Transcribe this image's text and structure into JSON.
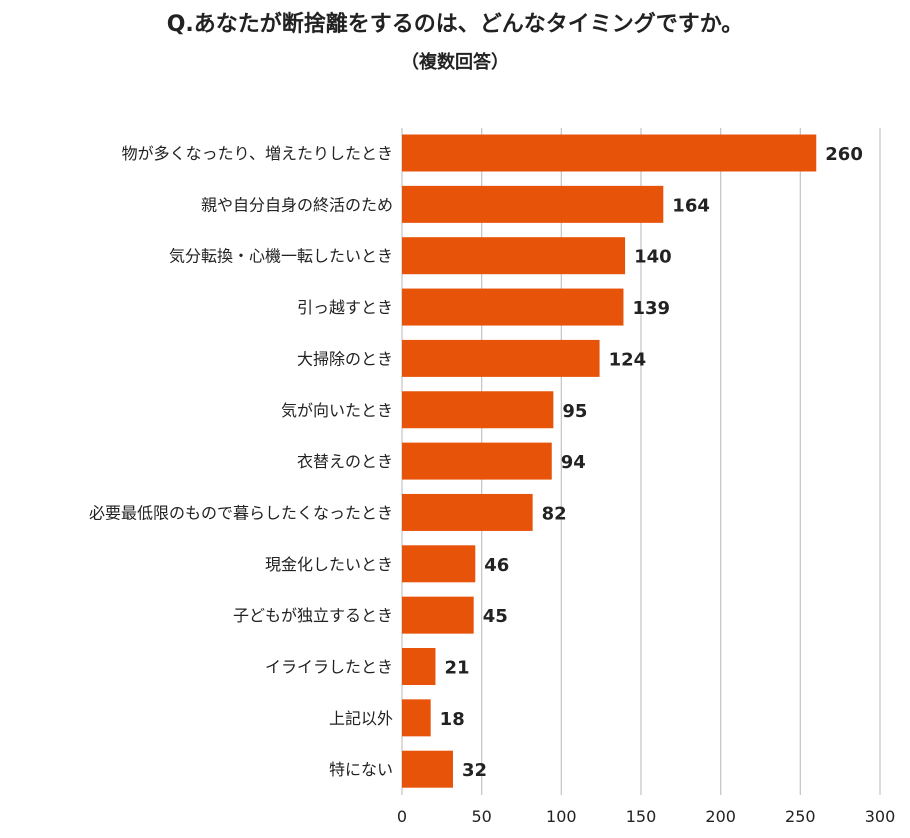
{
  "chart_data": {
    "type": "bar",
    "orientation": "horizontal",
    "title": "Q.あなたが断捨離をするのは、どんなタイミングですか。",
    "subtitle": "（複数回答）",
    "categories": [
      "物が多くなったり、増えたりしたとき",
      "親や自分自身の終活のため",
      "気分転換・心機一転したいとき",
      "引っ越すとき",
      "大掃除のとき",
      "気が向いたとき",
      "衣替えのとき",
      "必要最低限のもので暮らしたくなったとき",
      "現金化したいとき",
      "子どもが独立するとき",
      "イライラしたとき",
      "上記以外",
      "特にない"
    ],
    "values": [
      260,
      164,
      140,
      139,
      124,
      95,
      94,
      82,
      46,
      45,
      21,
      18,
      32
    ],
    "xlim": [
      0,
      300
    ],
    "xticks": [
      0,
      50,
      100,
      150,
      200,
      250,
      300
    ],
    "grid": true,
    "data_labels": true,
    "bar_color": "#E8530A",
    "grid_color": "#C8C8C8"
  }
}
